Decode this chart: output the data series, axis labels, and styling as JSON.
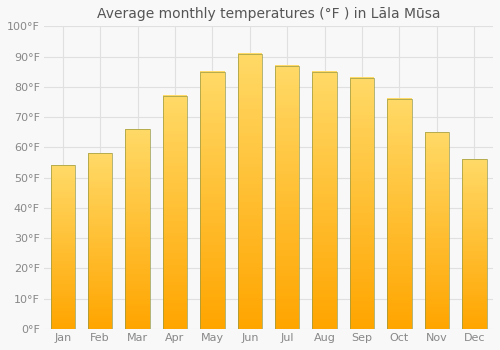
{
  "title": "Average monthly temperatures (°F ) in Lāla Mūsa",
  "months": [
    "Jan",
    "Feb",
    "Mar",
    "Apr",
    "May",
    "Jun",
    "Jul",
    "Aug",
    "Sep",
    "Oct",
    "Nov",
    "Dec"
  ],
  "values": [
    54,
    58,
    66,
    77,
    85,
    91,
    87,
    85,
    83,
    76,
    65,
    56
  ],
  "bar_color_bottom": "#FFA500",
  "bar_color_top": "#FFD966",
  "bar_edge_color": "#888844",
  "ylim": [
    0,
    100
  ],
  "yticks": [
    0,
    10,
    20,
    30,
    40,
    50,
    60,
    70,
    80,
    90,
    100
  ],
  "ytick_labels": [
    "0°F",
    "10°F",
    "20°F",
    "30°F",
    "40°F",
    "50°F",
    "60°F",
    "70°F",
    "80°F",
    "90°F",
    "100°F"
  ],
  "background_color": "#f8f8f8",
  "grid_color": "#e0e0e0",
  "title_fontsize": 10,
  "tick_fontsize": 8,
  "tick_color": "#888888"
}
